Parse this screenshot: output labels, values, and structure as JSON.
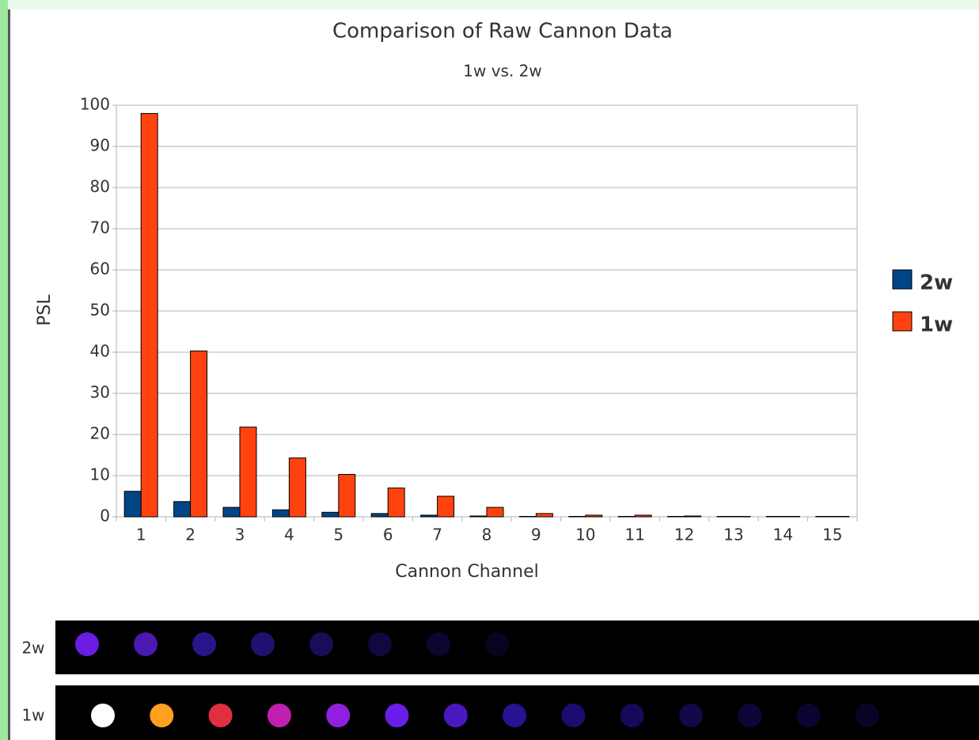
{
  "chart_data": {
    "type": "bar",
    "title": "Comparison of Raw Cannon Data",
    "subtitle": "1w vs. 2w",
    "x_label": "Cannon Channel",
    "y_label": "PSL",
    "categories": [
      "1",
      "2",
      "3",
      "4",
      "5",
      "6",
      "7",
      "8",
      "9",
      "10",
      "11",
      "12",
      "13",
      "14",
      "15"
    ],
    "series": [
      {
        "name": "2w",
        "color": "#004586",
        "values": [
          6.2,
          3.7,
          2.3,
          1.7,
          1.1,
          0.8,
          0.4,
          0.2,
          0.1,
          0.1,
          0.1,
          0.1,
          0.1,
          0.1,
          0.1
        ]
      },
      {
        "name": "1w",
        "color": "#ff420e",
        "values": [
          98,
          40.3,
          21.8,
          14.3,
          10.3,
          7,
          5,
          2.3,
          0.8,
          0.4,
          0.4,
          0.2,
          0.1,
          0.1,
          0.1
        ]
      }
    ],
    "ylim": [
      0,
      100
    ],
    "yticks": [
      0,
      10,
      20,
      30,
      40,
      50,
      60,
      70,
      80,
      90,
      100
    ],
    "grid": true,
    "legend": "right"
  },
  "strips": [
    {
      "label": "2w"
    },
    {
      "label": "1w"
    }
  ]
}
